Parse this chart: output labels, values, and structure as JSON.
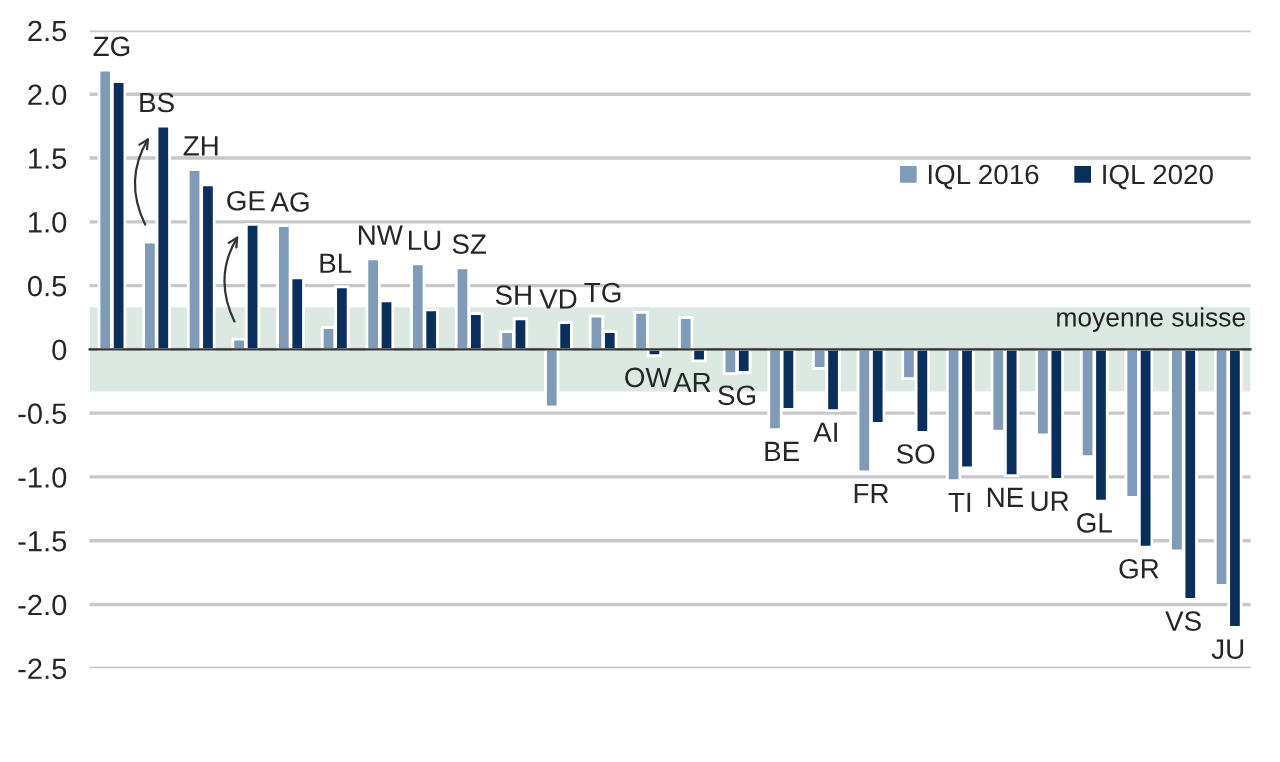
{
  "chart_data": {
    "type": "bar",
    "categories": [
      "ZG",
      "BS",
      "ZH",
      "GE",
      "AG",
      "BL",
      "NW",
      "LU",
      "SZ",
      "SH",
      "VD",
      "TG",
      "OW",
      "AR",
      "SG",
      "BE",
      "AI",
      "FR",
      "SO",
      "TI",
      "NE",
      "UR",
      "GL",
      "GR",
      "VS",
      "JU"
    ],
    "series": [
      {
        "name": "IQL 2016",
        "color": "#7f9bb8",
        "values": [
          2.19,
          0.84,
          1.41,
          0.08,
          0.97,
          0.17,
          0.71,
          0.67,
          0.64,
          0.14,
          -0.45,
          0.26,
          0.29,
          0.25,
          -0.19,
          -0.63,
          -0.15,
          -0.96,
          -0.23,
          -1.03,
          -0.64,
          -0.67,
          -0.84,
          -1.16,
          -1.58,
          -1.85
        ]
      },
      {
        "name": "IQL 2020",
        "color": "#0a2f5c",
        "values": [
          2.1,
          1.75,
          1.29,
          0.98,
          0.56,
          0.49,
          0.38,
          0.31,
          0.28,
          0.24,
          0.21,
          0.14,
          -0.05,
          -0.09,
          -0.18,
          -0.47,
          -0.48,
          -0.58,
          -0.65,
          -0.93,
          -0.99,
          -1.02,
          -1.19,
          -1.55,
          -1.96,
          -2.18
        ]
      }
    ],
    "ylim": [
      -2.5,
      2.5
    ],
    "yticks": [
      -2.5,
      {
        "value": -2.0,
        "label": "-2.0"
      },
      -1.5,
      {
        "value": -1.0,
        "label": "-1.0"
      },
      -0.5,
      0,
      0.5,
      {
        "value": 1.0,
        "label": "1.0"
      },
      1.5,
      {
        "value": 2.0,
        "label": "2.0"
      },
      2.5
    ],
    "bands": [
      {
        "axis": "y",
        "from": -0.33,
        "to": 0.33,
        "label": "moyenne suisse",
        "color": "#dce9e3"
      }
    ],
    "grid": "y",
    "legend": "top right"
  }
}
